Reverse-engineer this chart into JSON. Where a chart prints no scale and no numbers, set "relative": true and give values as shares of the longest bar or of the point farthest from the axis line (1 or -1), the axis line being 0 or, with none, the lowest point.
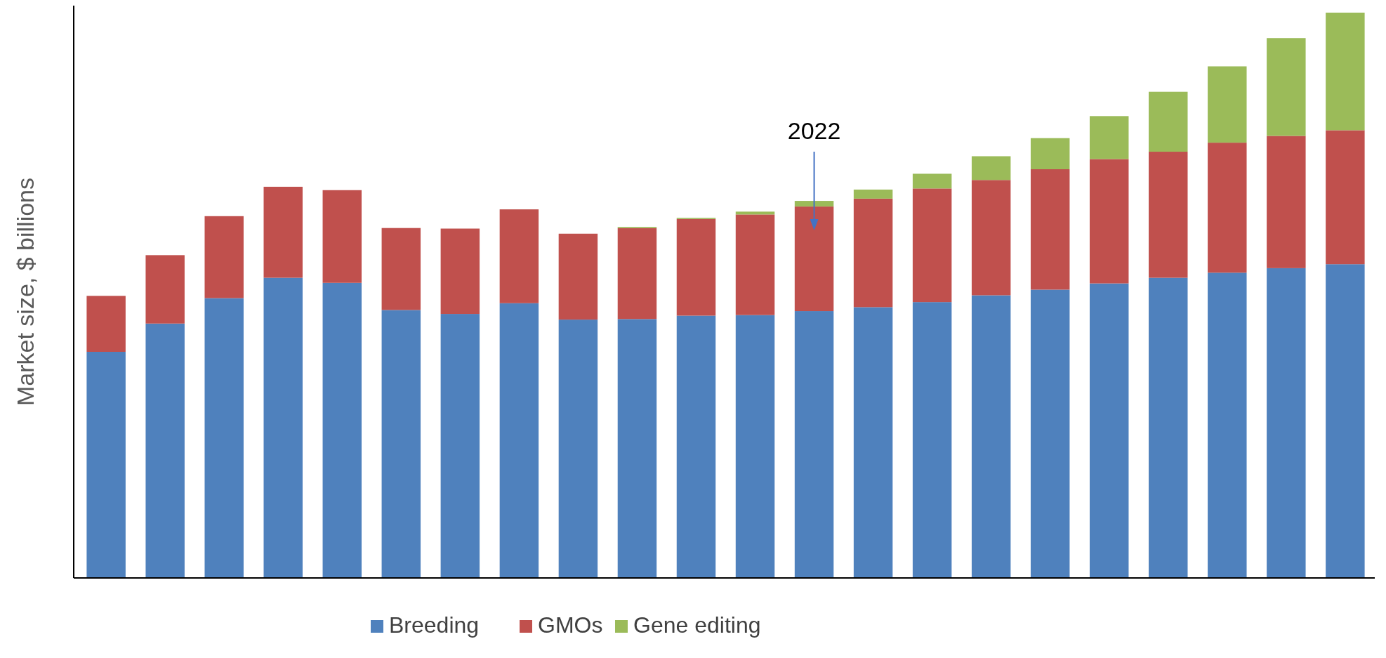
{
  "chart_data": {
    "type": "bar",
    "stacked": true,
    "relative": true,
    "ylabel": "Market size, $ billions",
    "legend": "bottom",
    "annotations": [
      "2022"
    ],
    "categories": [
      null,
      null,
      null,
      null,
      null,
      null,
      null,
      null,
      null,
      null,
      null,
      null,
      null,
      null,
      null,
      null,
      null,
      null,
      null,
      null,
      null,
      null
    ],
    "series": [
      {
        "name": "Breeding",
        "color": "#4f81bd",
        "values": [
          0.4,
          0.45,
          0.495,
          0.531,
          0.522,
          0.474,
          0.467,
          0.486,
          0.457,
          0.458,
          0.464,
          0.465,
          0.472,
          0.479,
          0.488,
          0.5,
          0.51,
          0.521,
          0.531,
          0.54,
          0.548,
          0.555
        ]
      },
      {
        "name": "GMOs",
        "color": "#c0504d",
        "values": [
          0.099,
          0.121,
          0.145,
          0.161,
          0.164,
          0.145,
          0.151,
          0.166,
          0.152,
          0.161,
          0.171,
          0.178,
          0.185,
          0.192,
          0.201,
          0.204,
          0.213,
          0.22,
          0.223,
          0.23,
          0.234,
          0.237
        ]
      },
      {
        "name": "Gene editing",
        "color": "#9bbb59",
        "values": [
          null,
          null,
          null,
          null,
          null,
          null,
          null,
          null,
          null,
          0.002,
          0.002,
          0.005,
          0.01,
          0.016,
          0.026,
          0.042,
          0.055,
          0.076,
          0.106,
          0.135,
          0.173,
          0.208
        ]
      }
    ]
  }
}
